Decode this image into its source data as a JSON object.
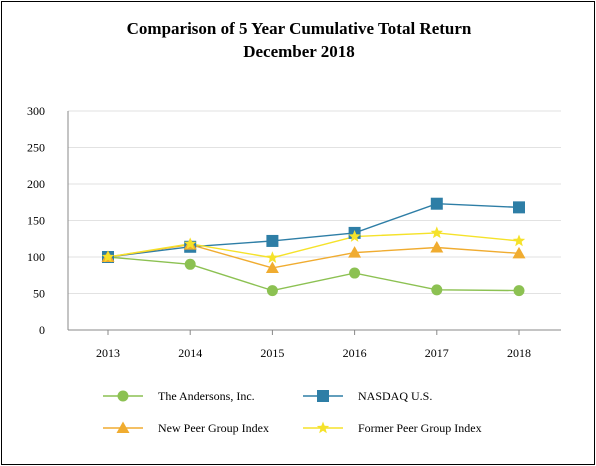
{
  "chart_data": {
    "type": "line",
    "title_lines": [
      "Comparison of 5 Year Cumulative Total Return",
      "December 2018"
    ],
    "categories": [
      "2013",
      "2014",
      "2015",
      "2016",
      "2017",
      "2018"
    ],
    "ylim": [
      0,
      300
    ],
    "yticks": [
      0,
      50,
      100,
      150,
      200,
      250,
      300
    ],
    "grid": true,
    "legend_placement": "bottom",
    "series": [
      {
        "name": "The Andersons, Inc.",
        "values": [
          100,
          90,
          54,
          78,
          55,
          54
        ],
        "color": "#8cc152",
        "marker": "circle"
      },
      {
        "name": "NASDAQ U.S.",
        "values": [
          100,
          114,
          122,
          133,
          173,
          168
        ],
        "color": "#2e7ea6",
        "marker": "square"
      },
      {
        "name": "New Peer Group Index",
        "values": [
          100,
          117,
          85,
          106,
          113,
          105
        ],
        "color": "#f0ac30",
        "marker": "triangle"
      },
      {
        "name": "Former Peer Group Index",
        "values": [
          100,
          118,
          99,
          128,
          133,
          122
        ],
        "color": "#f5e22a",
        "marker": "star"
      }
    ]
  }
}
